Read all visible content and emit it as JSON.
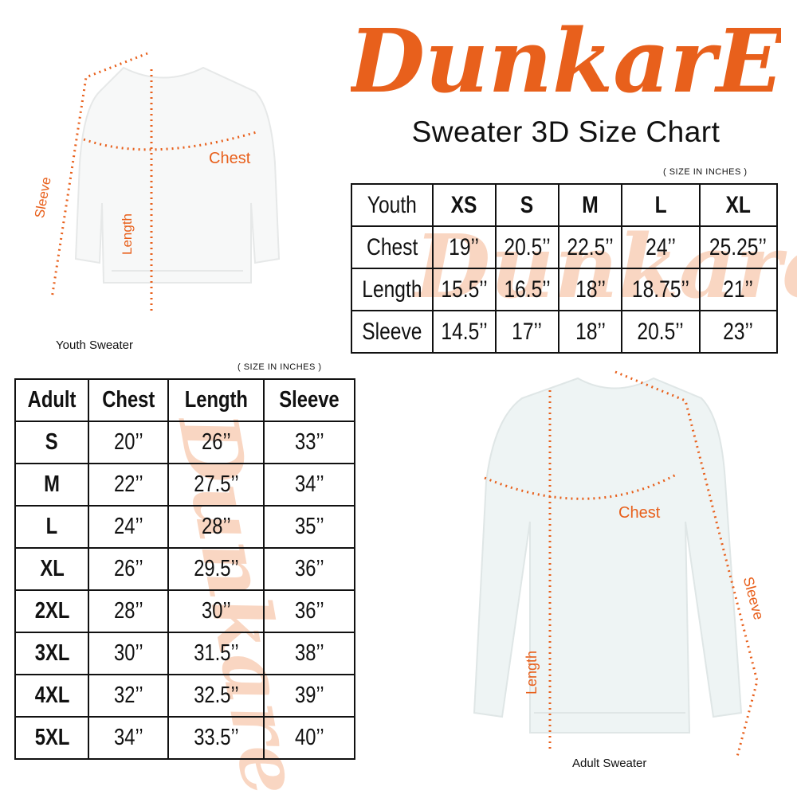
{
  "brand": {
    "logo_text": "DunkarE",
    "color": "#e8601c"
  },
  "title": "Sweater 3D Size Chart",
  "youth": {
    "caption": "Youth Sweater",
    "units_note": "( SIZE IN INCHES )",
    "labels": {
      "chest": "Chest",
      "length": "Length",
      "sleeve": "Sleeve"
    },
    "header": [
      "Youth",
      "XS",
      "S",
      "M",
      "L",
      "XL"
    ],
    "rows": [
      [
        "Chest",
        "19’’",
        "20.5’’",
        "22.5’’",
        "24’’",
        "25.25’’"
      ],
      [
        "Length",
        "15.5’’",
        "16.5’’",
        "18’’",
        "18.75’’",
        "21’’"
      ],
      [
        "Sleeve",
        "14.5’’",
        "17’’",
        "18’’",
        "20.5’’",
        "23’’"
      ]
    ]
  },
  "adult": {
    "caption": "Adult Sweater",
    "units_note": "( SIZE IN INCHES )",
    "labels": {
      "chest": "Chest",
      "length": "Length",
      "sleeve": "Sleeve"
    },
    "header": [
      "Adult",
      "Chest",
      "Length",
      "Sleeve"
    ],
    "rows": [
      [
        "S",
        "20’’",
        "26’’",
        "33’’"
      ],
      [
        "M",
        "22’’",
        "27.5’’",
        "34’’"
      ],
      [
        "L",
        "24’’",
        "28’’",
        "35’’"
      ],
      [
        "XL",
        "26’’",
        "29.5’’",
        "36’’"
      ],
      [
        "2XL",
        "28’’",
        "30’’",
        "36’’"
      ],
      [
        "3XL",
        "30’’",
        "31.5’’",
        "38’’"
      ],
      [
        "4XL",
        "32’’",
        "32.5’’",
        "39’’"
      ],
      [
        "5XL",
        "34’’",
        "33.5’’",
        "40’’"
      ]
    ]
  }
}
